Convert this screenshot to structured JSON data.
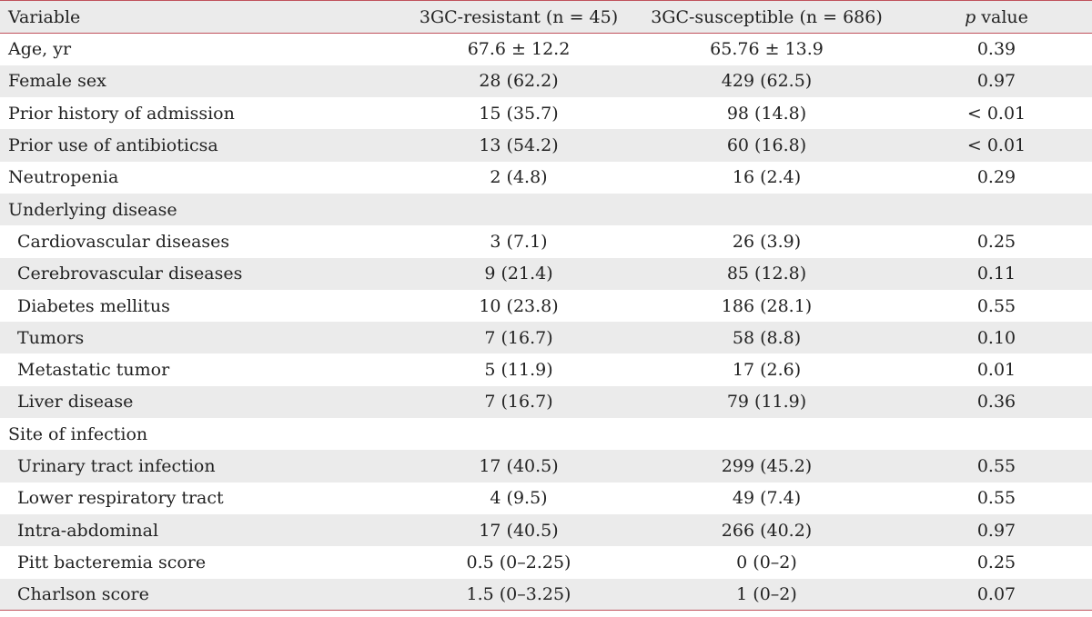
{
  "table": {
    "headers": {
      "variable": "Variable",
      "resistant": "3GC-resistant (n = 45)",
      "susceptible": "3GC-susceptible (n = 686)",
      "p_italic": "p",
      "p_rest": " value"
    },
    "rows": [
      {
        "label": "Age, yr",
        "resistant": "67.6 ± 12.2",
        "susceptible": "65.76 ± 13.9",
        "p": "0.39"
      },
      {
        "label": "Female sex",
        "resistant": "28 (62.2)",
        "susceptible": "429 (62.5)",
        "p": "0.97"
      },
      {
        "label": "Prior history of admission",
        "resistant": "15 (35.7)",
        "susceptible": "98 (14.8)",
        "p": "< 0.01"
      },
      {
        "label": "Prior use of antibioticsa",
        "resistant": "13 (54.2)",
        "susceptible": "60 (16.8)",
        "p": "< 0.01"
      },
      {
        "label": "Neutropenia",
        "resistant": "2 (4.8)",
        "susceptible": "16 (2.4)",
        "p": "0.29"
      },
      {
        "label": "Underlying disease",
        "resistant": "",
        "susceptible": "",
        "p": ""
      },
      {
        "label": "Cardiovascular diseases",
        "resistant": "3 (7.1)",
        "susceptible": "26 (3.9)",
        "p": "0.25"
      },
      {
        "label": "Cerebrovascular diseases",
        "resistant": "9 (21.4)",
        "susceptible": "85 (12.8)",
        "p": "0.11"
      },
      {
        "label": "Diabetes mellitus",
        "resistant": "10 (23.8)",
        "susceptible": "186 (28.1)",
        "p": "0.55"
      },
      {
        "label": "Tumors",
        "resistant": "7 (16.7)",
        "susceptible": "58 (8.8)",
        "p": "0.10"
      },
      {
        "label": "Metastatic tumor",
        "resistant": "5 (11.9)",
        "susceptible": "17 (2.6)",
        "p": "0.01"
      },
      {
        "label": "Liver disease",
        "resistant": "7 (16.7)",
        "susceptible": "79 (11.9)",
        "p": "0.36"
      },
      {
        "label": "Site of infection",
        "resistant": "",
        "susceptible": "",
        "p": ""
      },
      {
        "label": "Urinary tract infection",
        "resistant": "17 (40.5)",
        "susceptible": "299 (45.2)",
        "p": "0.55"
      },
      {
        "label": "Lower respiratory tract",
        "resistant": "4 (9.5)",
        "susceptible": "49 (7.4)",
        "p": "0.55"
      },
      {
        "label": "Intra-abdominal",
        "resistant": "17 (40.5)",
        "susceptible": "266 (40.2)",
        "p": "0.97"
      },
      {
        "label": "Pitt bacteremia score",
        "resistant": "0.5 (0–2.25)",
        "susceptible": "0 (0–2)",
        "p": "0.25"
      },
      {
        "label": "Charlson score",
        "resistant": "1.5 (0–3.25)",
        "susceptible": "1 (0–2)",
        "p": "0.07"
      }
    ]
  }
}
